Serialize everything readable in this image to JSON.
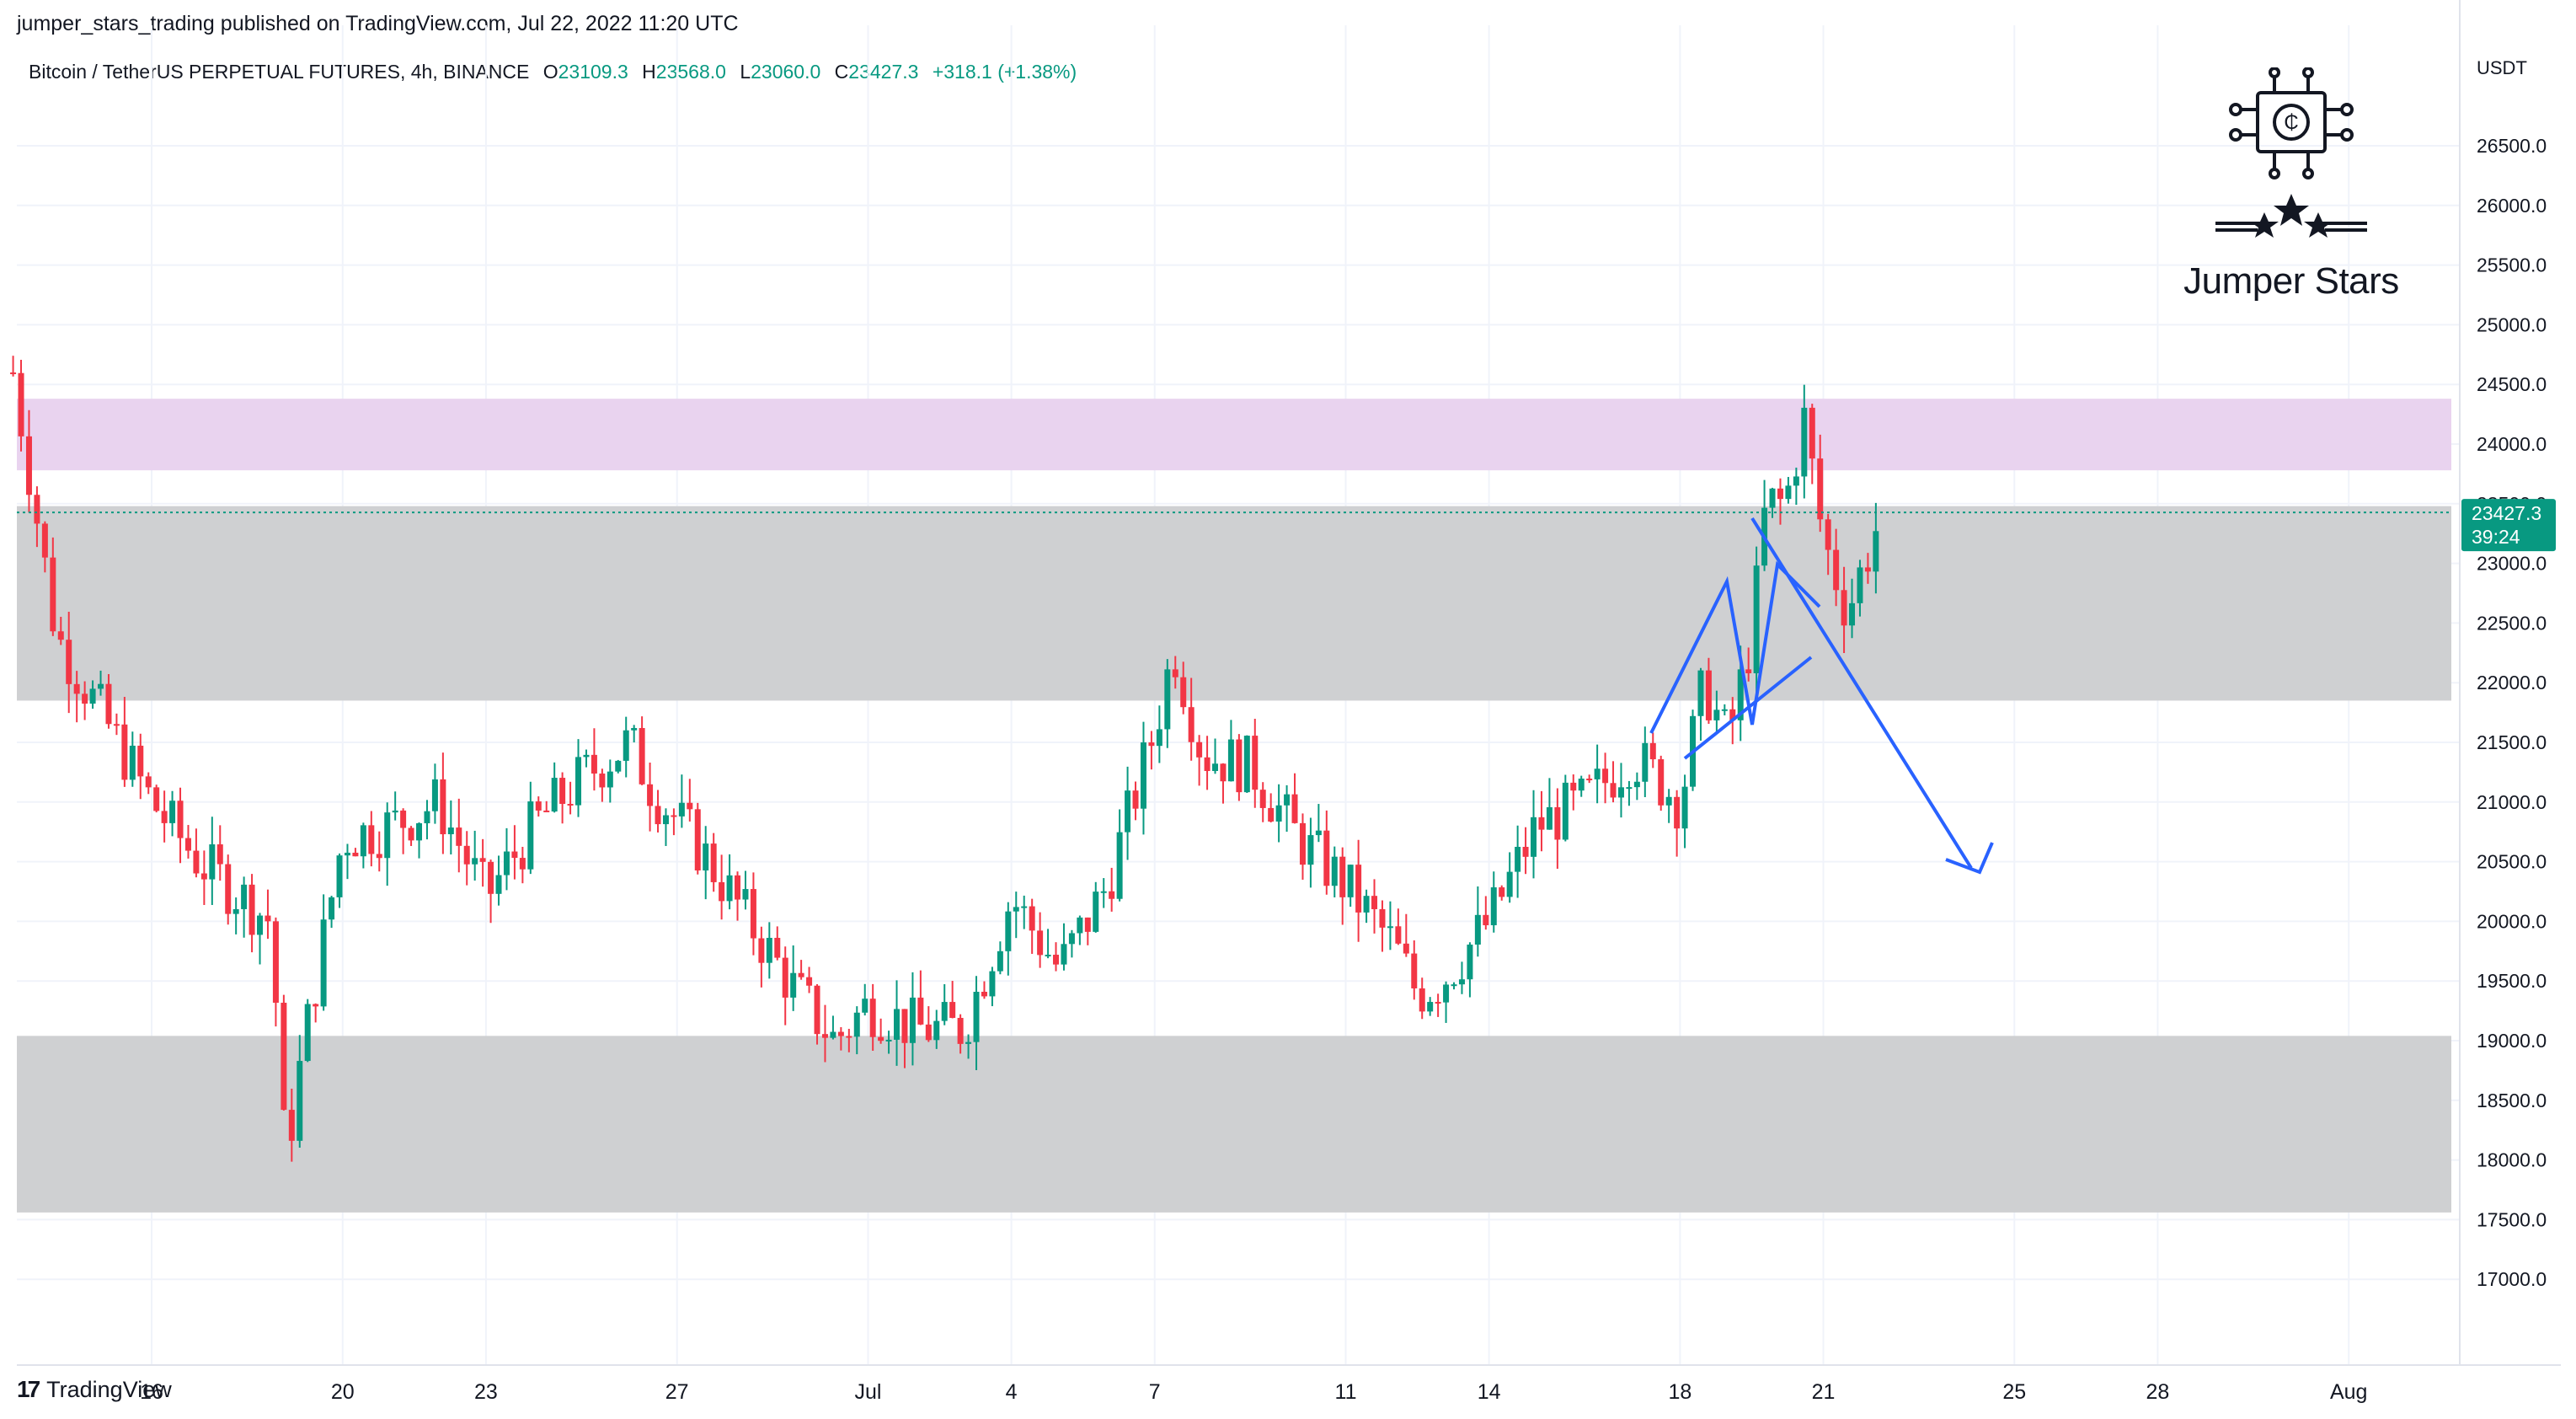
{
  "header": {
    "published_by": "jumper_stars_trading published on TradingView.com, Jul 22, 2022 11:20 UTC",
    "symbol": "Bitcoin / TetherUS PERPETUAL FUTURES, 4h, BINANCE",
    "open_label": "O",
    "open_value": "23109.3",
    "high_label": "H",
    "high_value": "23568.0",
    "low_label": "L",
    "low_value": "23060.0",
    "close_label": "C",
    "close_value": "23427.3",
    "change": "+318.1 (+1.38%)"
  },
  "footer": {
    "brand": "TradingView"
  },
  "watermark": {
    "text": "Jumper Stars"
  },
  "colors": {
    "up": "#089981",
    "down": "#f23645",
    "zone_gray": "#cfd0d2",
    "zone_pink": "#e9d3ef",
    "drawing_blue": "#2962ff",
    "grid": "#f0f3fa"
  },
  "chart_data": {
    "type": "candlestick",
    "interval": "4h",
    "currency": "USDT",
    "ylim": [
      16700,
      26900
    ],
    "y_ticks": [
      "26500.0",
      "26000.0",
      "25500.0",
      "25000.0",
      "24500.0",
      "24000.0",
      "23500.0",
      "23000.0",
      "22500.0",
      "22000.0",
      "21500.0",
      "21000.0",
      "20500.0",
      "20000.0",
      "19500.0",
      "19000.0",
      "18500.0",
      "18000.0",
      "17500.0",
      "17000.0"
    ],
    "x_ticks": [
      {
        "label": "16",
        "day": 16
      },
      {
        "label": "20",
        "day": 20
      },
      {
        "label": "23",
        "day": 23
      },
      {
        "label": "27",
        "day": 27
      },
      {
        "label": "Jul",
        "day": 31
      },
      {
        "label": "4",
        "day": 34
      },
      {
        "label": "7",
        "day": 37
      },
      {
        "label": "11",
        "day": 41
      },
      {
        "label": "14",
        "day": 44
      },
      {
        "label": "18",
        "day": 48
      },
      {
        "label": "21",
        "day": 51
      },
      {
        "label": "25",
        "day": 55
      },
      {
        "label": "28",
        "day": 58
      },
      {
        "label": "Aug",
        "day": 62
      }
    ],
    "last_price": "23427.3",
    "countdown": "39:24",
    "zones": [
      {
        "color": "pink",
        "from": 23780,
        "to": 24380
      },
      {
        "color": "gray",
        "from": 21850,
        "to": 23480
      },
      {
        "color": "gray",
        "from": 17560,
        "to": 19040
      }
    ],
    "path_days": [
      13.1,
      14,
      15,
      16,
      17,
      18.5,
      18.8,
      19.2,
      20,
      21,
      22,
      23,
      24,
      25,
      26,
      26.5,
      27.5,
      28.5,
      29.5,
      30.3,
      31,
      32,
      33,
      34,
      35,
      36,
      37,
      37.4,
      38,
      39,
      40,
      41,
      42,
      42.5,
      43,
      44,
      45,
      46,
      47,
      48,
      48.5,
      49,
      49.5,
      49.8,
      50.2,
      50.6,
      51,
      51.5,
      52.2
    ],
    "path_prices": [
      24600,
      22400,
      21700,
      21000,
      20500,
      20000,
      18000,
      19000,
      20700,
      20800,
      21000,
      20200,
      20800,
      21200,
      21500,
      21100,
      20600,
      20000,
      19400,
      19000,
      19300,
      19100,
      19100,
      20200,
      19600,
      20300,
      21600,
      22300,
      21400,
      21300,
      20700,
      20300,
      19800,
      19400,
      19500,
      20000,
      20800,
      21000,
      21400,
      21000,
      22000,
      21500,
      22400,
      23500,
      23500,
      24200,
      23200,
      22600,
      23400
    ]
  }
}
